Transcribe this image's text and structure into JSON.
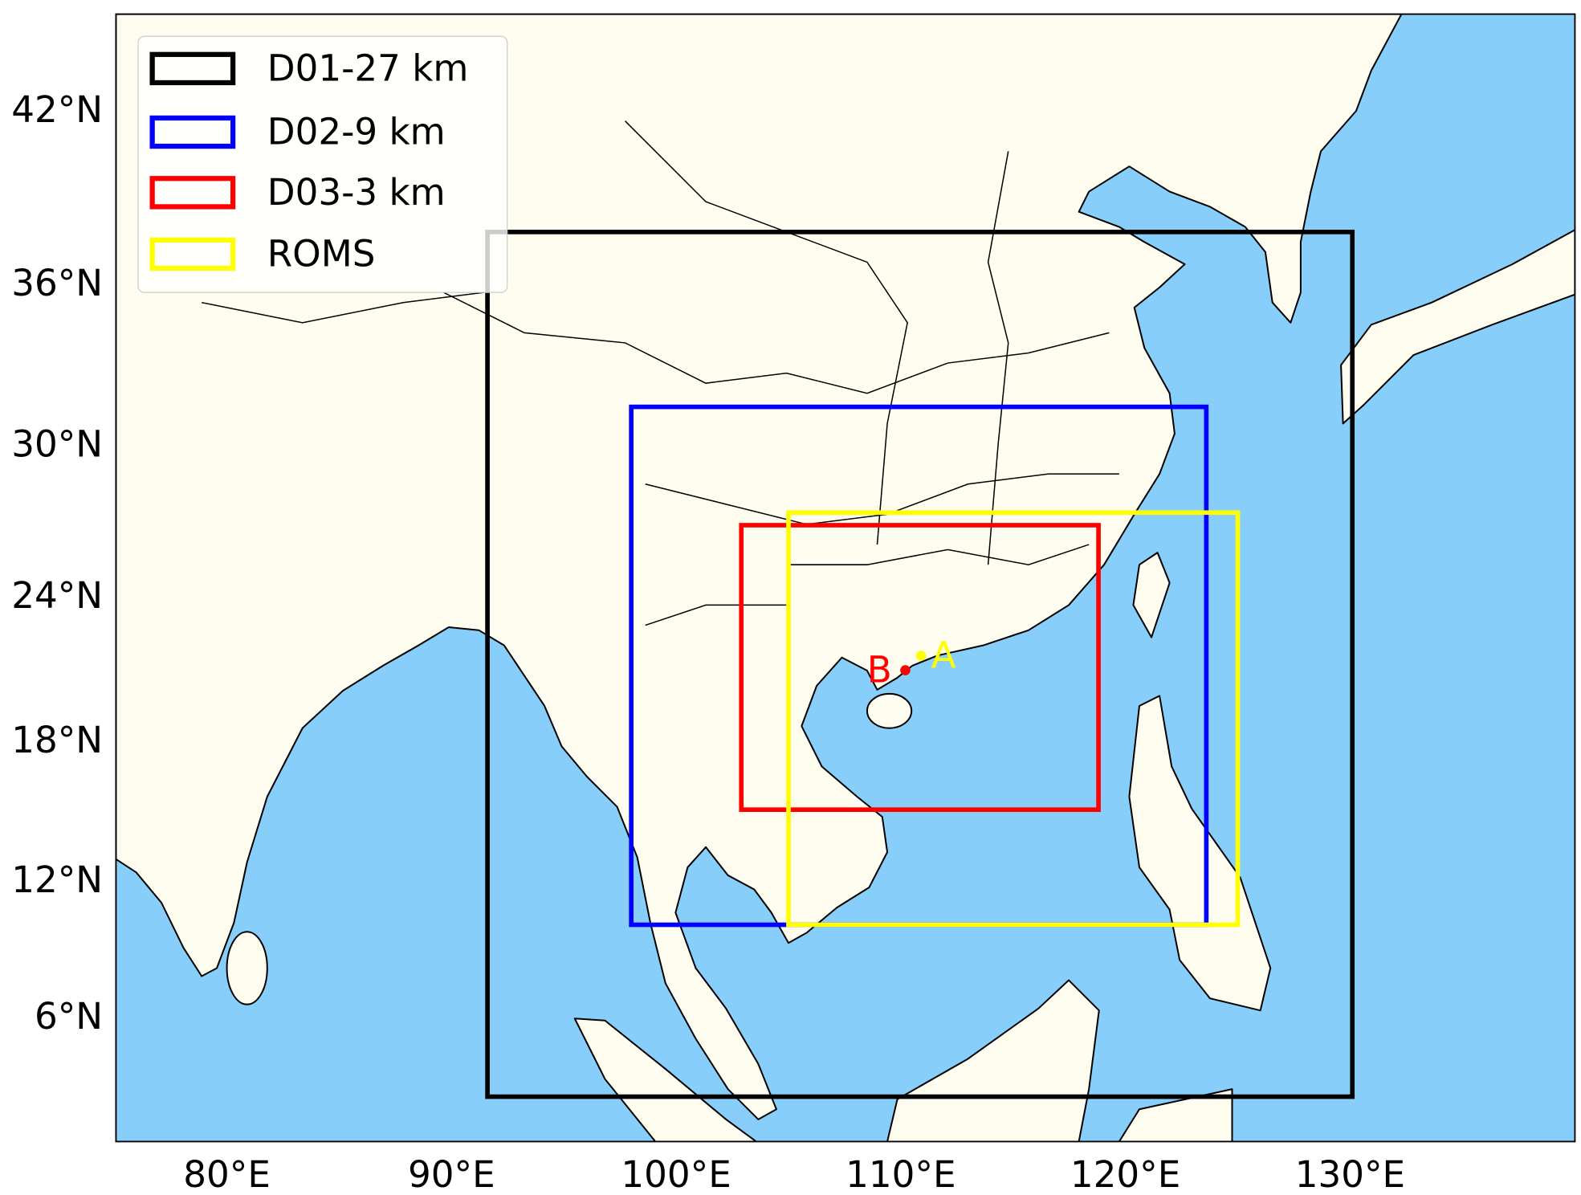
{
  "map": {
    "projection": "Mercator",
    "extent": {
      "lon": [
        75,
        140
      ],
      "lat": [
        0,
        45
      ]
    },
    "ocean_color": "#87cefa",
    "land_color": "#fffdf0",
    "x_ticks": [
      {
        "lon": 80,
        "label": "80°E"
      },
      {
        "lon": 90,
        "label": "90°E"
      },
      {
        "lon": 100,
        "label": "100°E"
      },
      {
        "lon": 110,
        "label": "110°E"
      },
      {
        "lon": 120,
        "label": "120°E"
      },
      {
        "lon": 130,
        "label": "130°E"
      }
    ],
    "y_ticks": [
      {
        "lat": 42,
        "label": "42°N"
      },
      {
        "lat": 36,
        "label": "36°N"
      },
      {
        "lat": 30,
        "label": "30°N"
      },
      {
        "lat": 24,
        "label": "24°N"
      },
      {
        "lat": 18,
        "label": "18°N"
      },
      {
        "lat": 12,
        "label": "12°N"
      },
      {
        "lat": 6,
        "label": "6°N"
      }
    ],
    "domains": [
      {
        "label": "D01-27 km",
        "color": "#000000",
        "lon": [
          91.6,
          130.1
        ],
        "lat": [
          2.4,
          37.8
        ]
      },
      {
        "label": "D02-9 km",
        "color": "#0000ff",
        "lon": [
          98.0,
          123.6
        ],
        "lat": [
          10.0,
          31.4
        ]
      },
      {
        "label": "D03-3 km",
        "color": "#ff0000",
        "lon": [
          102.9,
          118.8
        ],
        "lat": [
          15.0,
          26.8
        ]
      },
      {
        "label": "ROMS",
        "color": "#ffff00",
        "lon": [
          105.0,
          125.0
        ],
        "lat": [
          10.0,
          27.3
        ]
      }
    ],
    "points": [
      {
        "label": "A",
        "color": "#ffff00",
        "lon": 110.9,
        "lat": 21.5
      },
      {
        "label": "B",
        "color": "#ff0000",
        "lon": 110.2,
        "lat": 20.9
      }
    ],
    "legend_position": "upper-left"
  }
}
